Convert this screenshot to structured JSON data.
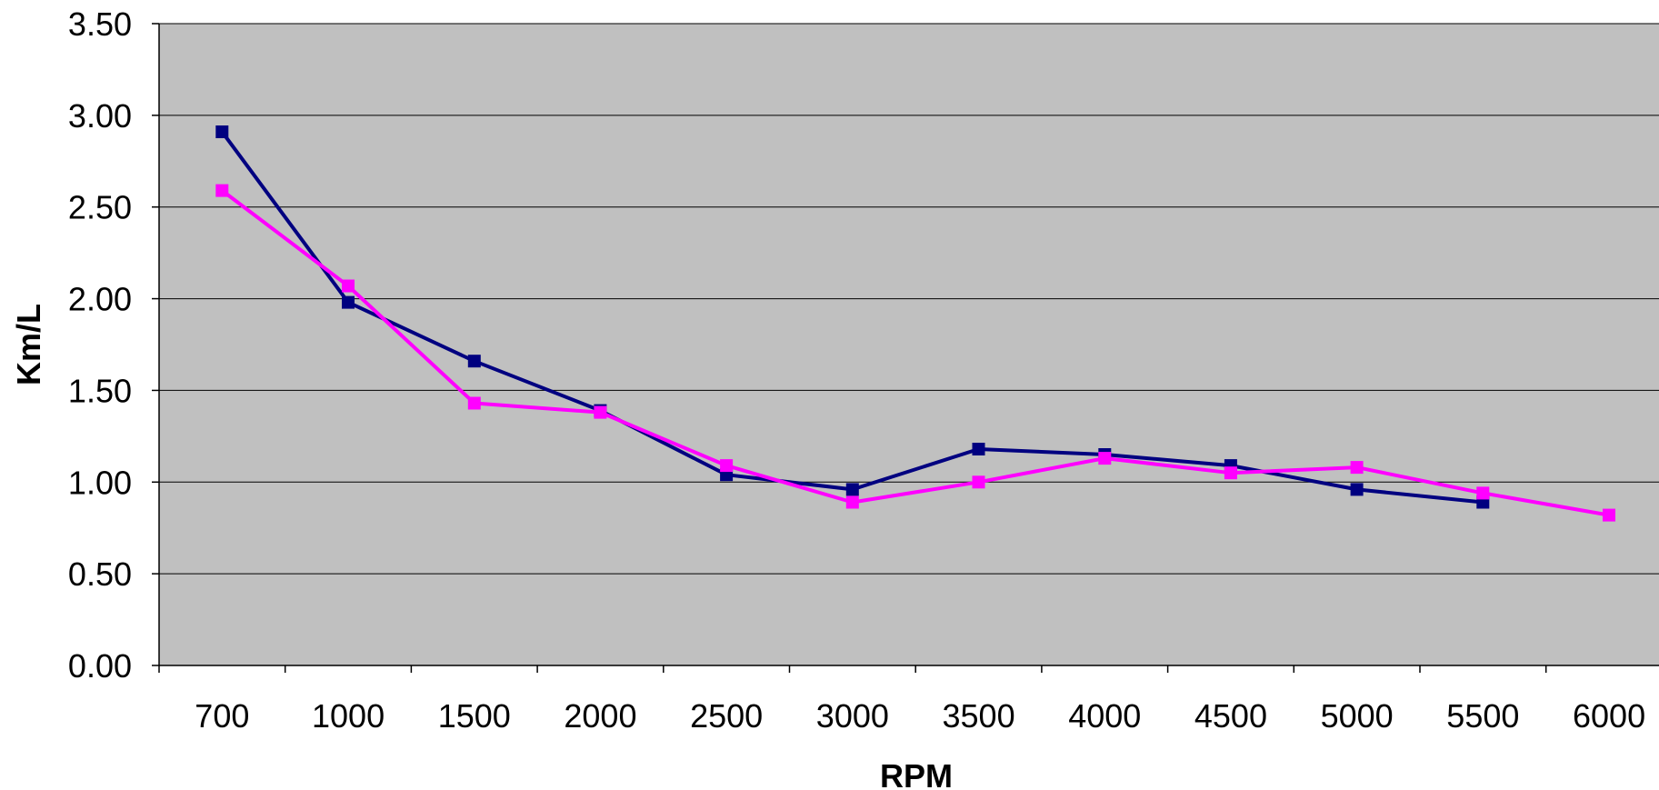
{
  "chart_data": {
    "type": "line",
    "title": "",
    "xlabel": "RPM",
    "ylabel": "Km/L",
    "categories": [
      "700",
      "1000",
      "1500",
      "2000",
      "2500",
      "3000",
      "3500",
      "4000",
      "4500",
      "5000",
      "5500",
      "6000"
    ],
    "series": [
      {
        "values": [
          2.91,
          1.98,
          1.66,
          1.39,
          1.04,
          0.96,
          1.18,
          1.15,
          1.09,
          0.96,
          0.89,
          null
        ],
        "color": "#000080",
        "marker": "square"
      },
      {
        "values": [
          2.59,
          2.07,
          1.43,
          1.38,
          1.09,
          0.89,
          1.0,
          1.13,
          1.05,
          1.08,
          0.94,
          0.82
        ],
        "color": "#FF00FF",
        "marker": "square"
      }
    ],
    "yticks": [
      "0.00",
      "0.50",
      "1.00",
      "1.50",
      "2.00",
      "2.50",
      "3.00",
      "3.50"
    ],
    "ylim": [
      0,
      3.5
    ],
    "grid": true,
    "legend": "none",
    "plot_background": "#C0C0C0"
  }
}
